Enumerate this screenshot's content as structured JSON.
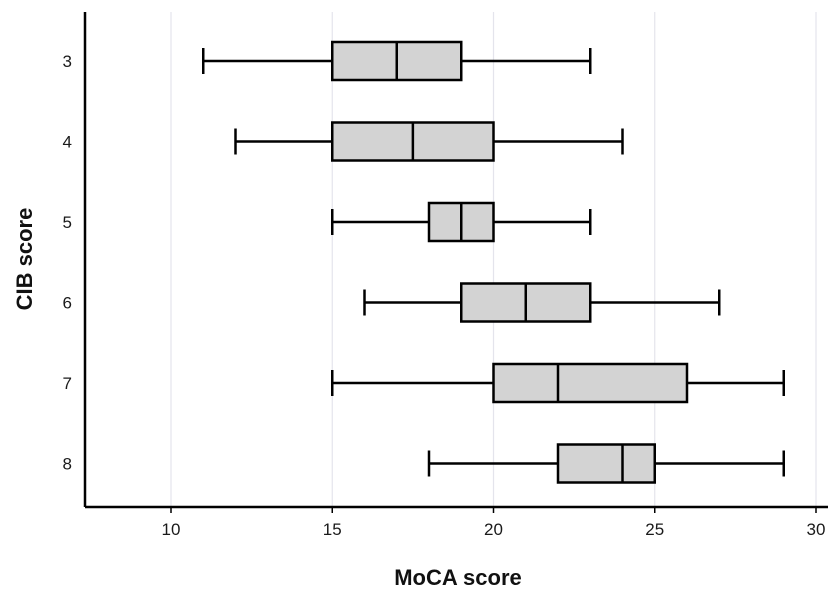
{
  "chart_data": {
    "type": "boxplot",
    "orientation": "horizontal",
    "xlabel": "MoCA score",
    "ylabel": "CIB score",
    "xlim": [
      7.5,
      30.3
    ],
    "xticks": [
      10,
      15,
      20,
      25,
      30
    ],
    "grid": "vertical",
    "categories": [
      "3",
      "4",
      "5",
      "6",
      "7",
      "8"
    ],
    "series": [
      {
        "category": "3",
        "min": 11,
        "q1": 15,
        "median": 17,
        "q3": 19,
        "max": 23
      },
      {
        "category": "4",
        "min": 12,
        "q1": 15,
        "median": 17.5,
        "q3": 20,
        "max": 24
      },
      {
        "category": "5",
        "min": 15,
        "q1": 18,
        "median": 19,
        "q3": 20,
        "max": 23
      },
      {
        "category": "6",
        "min": 16,
        "q1": 19,
        "median": 21,
        "q3": 23,
        "max": 27
      },
      {
        "category": "7",
        "min": 15,
        "q1": 20,
        "median": 22,
        "q3": 26,
        "max": 29
      },
      {
        "category": "8",
        "min": 18,
        "q1": 22,
        "median": 24,
        "q3": 25,
        "max": 29
      }
    ],
    "colors": {
      "box_fill": "#d3d3d3",
      "stroke": "#000000",
      "grid": "#e4e4ec"
    }
  }
}
